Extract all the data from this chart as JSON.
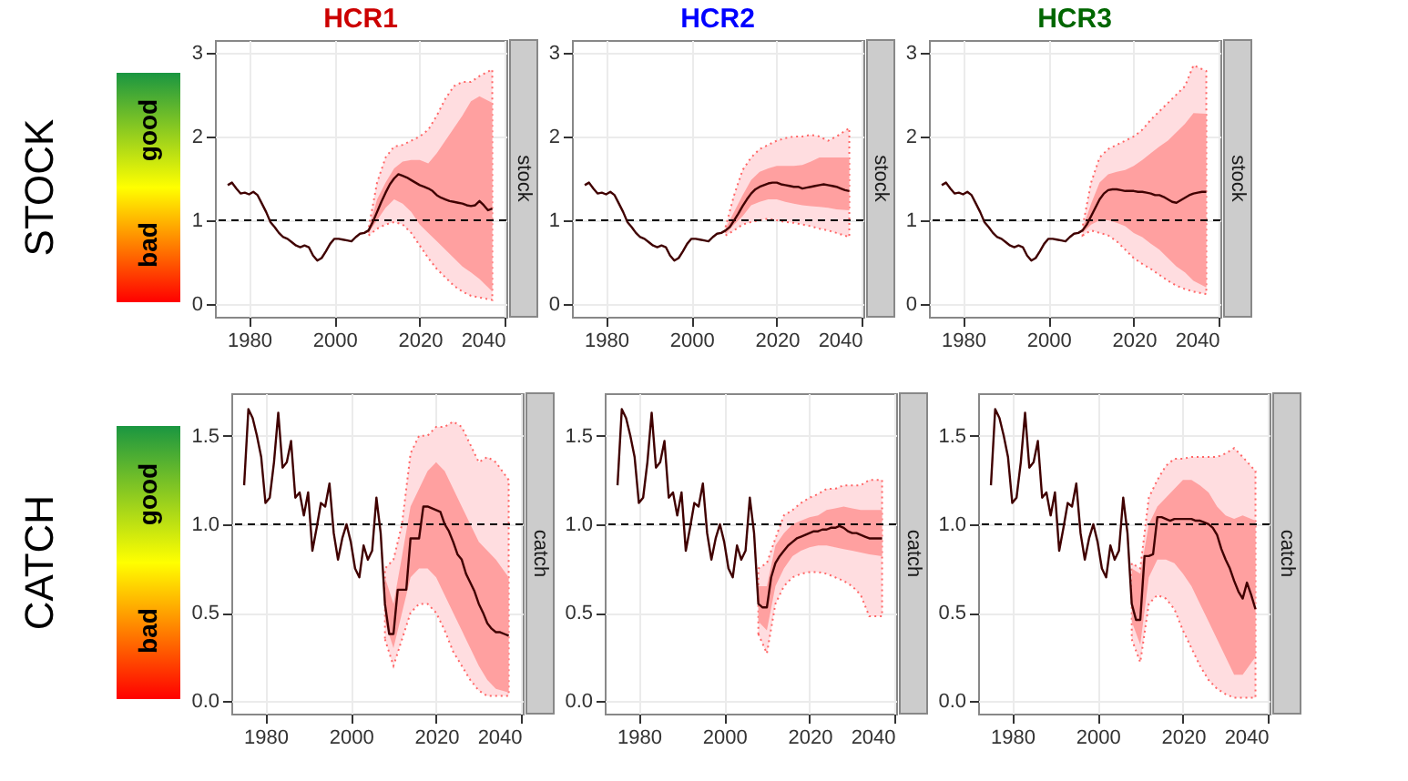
{
  "chart_data": [
    {
      "type": "other",
      "title": "STOCK",
      "annotations": [
        "good",
        "bad"
      ]
    },
    {
      "type": "line",
      "title": "HCR1",
      "y2label": "stock",
      "xlim": [
        1972,
        2040.3
      ],
      "xticks": [
        1980,
        2000,
        2020,
        2040
      ],
      "ylim": [
        -0.15,
        3.15
      ],
      "yticks": [
        0,
        1,
        2,
        3
      ],
      "grid": true,
      "ref_lines": [
        {
          "axis": "y",
          "value": 1,
          "color": "#000000",
          "line_style": "dashed"
        }
      ],
      "series": [
        {
          "color": "#ffdde0",
          "line_style": "dotted",
          "x": [
            2008,
            2010,
            2012,
            2014,
            2016,
            2018,
            2020,
            2022,
            2024,
            2026,
            2028,
            2030,
            2032,
            2034,
            2037
          ],
          "values": [
            null,
            null,
            null,
            null,
            null,
            null,
            null,
            null,
            null,
            null,
            null,
            null,
            null,
            null,
            null
          ],
          "lower": [
            0.82,
            0.9,
            0.95,
            0.98,
            0.95,
            0.85,
            0.7,
            0.55,
            0.42,
            0.32,
            0.22,
            0.15,
            0.1,
            0.08,
            0.05
          ],
          "upper": [
            0.9,
            1.45,
            1.75,
            1.88,
            1.9,
            1.95,
            2.0,
            2.08,
            2.25,
            2.45,
            2.6,
            2.65,
            2.65,
            2.72,
            2.8
          ]
        },
        {
          "color": "#ffa0a0",
          "x": [
            2008,
            2010,
            2012,
            2014,
            2016,
            2018,
            2020,
            2022,
            2024,
            2026,
            2028,
            2030,
            2032,
            2034,
            2037
          ],
          "values": [
            null,
            null,
            null,
            null,
            null,
            null,
            null,
            null,
            null,
            null,
            null,
            null,
            null,
            null,
            null
          ],
          "lower": [
            0.85,
            1.0,
            1.15,
            1.25,
            1.2,
            1.1,
            0.95,
            0.85,
            0.75,
            0.65,
            0.55,
            0.45,
            0.38,
            0.3,
            0.15
          ],
          "upper": [
            0.88,
            1.25,
            1.45,
            1.62,
            1.7,
            1.72,
            1.72,
            1.68,
            1.8,
            1.95,
            2.1,
            2.25,
            2.42,
            2.48,
            2.4
          ]
        },
        {
          "color": "#400000",
          "x": [
            1975,
            1976,
            1977,
            1978,
            1979,
            1980,
            1981,
            1982,
            1983,
            1984,
            1985,
            1986,
            1987,
            1988,
            1989,
            1990,
            1991,
            1992,
            1993,
            1994,
            1995,
            1996,
            1997,
            1998,
            1999,
            2000,
            2001,
            2002,
            2003,
            2004,
            2005,
            2006,
            2007,
            2008,
            2009,
            2010,
            2011,
            2012,
            2013,
            2014,
            2015,
            2016,
            2017,
            2018,
            2019,
            2020,
            2021,
            2022,
            2023,
            2024,
            2025,
            2026,
            2027,
            2028,
            2029,
            2030,
            2031,
            2032,
            2033,
            2034,
            2035,
            2036,
            2037
          ],
          "values": [
            1.42,
            1.45,
            1.38,
            1.32,
            1.33,
            1.31,
            1.34,
            1.3,
            1.2,
            1.1,
            0.98,
            0.92,
            0.85,
            0.8,
            0.78,
            0.74,
            0.7,
            0.68,
            0.7,
            0.68,
            0.58,
            0.52,
            0.55,
            0.63,
            0.72,
            0.78,
            0.78,
            0.77,
            0.76,
            0.75,
            0.8,
            0.84,
            0.85,
            0.88,
            0.98,
            1.1,
            1.22,
            1.33,
            1.43,
            1.5,
            1.55,
            1.53,
            1.51,
            1.48,
            1.45,
            1.42,
            1.4,
            1.38,
            1.35,
            1.3,
            1.27,
            1.25,
            1.23,
            1.22,
            1.21,
            1.2,
            1.18,
            1.17,
            1.18,
            1.23,
            1.18,
            1.12,
            1.14
          ]
        }
      ]
    },
    {
      "type": "line",
      "title": "HCR2",
      "y2label": "stock",
      "xlim": [
        1972,
        2040.3
      ],
      "xticks": [
        1980,
        2000,
        2020,
        2040
      ],
      "ylim": [
        -0.15,
        3.15
      ],
      "yticks": [
        0,
        1,
        2,
        3
      ],
      "grid": true,
      "ref_lines": [
        {
          "axis": "y",
          "value": 1,
          "color": "#000000",
          "line_style": "dashed"
        }
      ],
      "series": [
        {
          "color": "#ffdde0",
          "line_style": "dotted",
          "x": [
            2008,
            2010,
            2012,
            2014,
            2016,
            2018,
            2020,
            2022,
            2024,
            2026,
            2028,
            2030,
            2032,
            2034,
            2037
          ],
          "values": [
            null,
            null,
            null,
            null,
            null,
            null,
            null,
            null,
            null,
            null,
            null,
            null,
            null,
            null,
            null
          ],
          "lower": [
            0.82,
            0.88,
            0.95,
            0.98,
            1.0,
            1.02,
            1.0,
            0.98,
            0.97,
            0.95,
            0.93,
            0.9,
            0.88,
            0.85,
            0.8
          ],
          "upper": [
            0.92,
            1.3,
            1.6,
            1.75,
            1.85,
            1.9,
            1.95,
            1.98,
            2.0,
            2.0,
            2.02,
            2.0,
            1.95,
            2.0,
            2.1
          ]
        },
        {
          "color": "#ffa0a0",
          "x": [
            2008,
            2010,
            2012,
            2014,
            2016,
            2018,
            2020,
            2022,
            2024,
            2026,
            2028,
            2030,
            2032,
            2034,
            2037
          ],
          "values": [
            null,
            null,
            null,
            null,
            null,
            null,
            null,
            null,
            null,
            null,
            null,
            null,
            null,
            null,
            null
          ],
          "lower": [
            0.84,
            0.95,
            1.05,
            1.18,
            1.22,
            1.25,
            1.25,
            1.22,
            1.2,
            1.18,
            1.17,
            1.16,
            1.15,
            1.13,
            1.12
          ],
          "upper": [
            0.9,
            1.1,
            1.3,
            1.48,
            1.58,
            1.62,
            1.65,
            1.65,
            1.65,
            1.66,
            1.7,
            1.75,
            1.75,
            1.75,
            1.75
          ]
        },
        {
          "color": "#400000",
          "x": [
            1975,
            1976,
            1977,
            1978,
            1979,
            1980,
            1981,
            1982,
            1983,
            1984,
            1985,
            1986,
            1987,
            1988,
            1989,
            1990,
            1991,
            1992,
            1993,
            1994,
            1995,
            1996,
            1997,
            1998,
            1999,
            2000,
            2001,
            2002,
            2003,
            2004,
            2005,
            2006,
            2007,
            2008,
            2009,
            2010,
            2011,
            2012,
            2013,
            2014,
            2015,
            2016,
            2017,
            2018,
            2019,
            2020,
            2021,
            2022,
            2023,
            2024,
            2025,
            2026,
            2027,
            2028,
            2029,
            2030,
            2031,
            2032,
            2033,
            2034,
            2035,
            2036,
            2037
          ],
          "values": [
            1.42,
            1.45,
            1.38,
            1.32,
            1.33,
            1.31,
            1.34,
            1.3,
            1.2,
            1.1,
            0.98,
            0.92,
            0.85,
            0.8,
            0.78,
            0.74,
            0.7,
            0.68,
            0.7,
            0.68,
            0.58,
            0.52,
            0.55,
            0.63,
            0.72,
            0.78,
            0.78,
            0.77,
            0.76,
            0.75,
            0.8,
            0.84,
            0.85,
            0.88,
            0.92,
            1.0,
            1.08,
            1.17,
            1.25,
            1.32,
            1.37,
            1.4,
            1.42,
            1.44,
            1.45,
            1.45,
            1.43,
            1.42,
            1.41,
            1.4,
            1.4,
            1.38,
            1.39,
            1.4,
            1.41,
            1.42,
            1.43,
            1.42,
            1.41,
            1.4,
            1.38,
            1.36,
            1.35
          ]
        }
      ]
    },
    {
      "type": "line",
      "title": "HCR3",
      "y2label": "stock",
      "xlim": [
        1972,
        2040.3
      ],
      "xticks": [
        1980,
        2000,
        2020,
        2040
      ],
      "ylim": [
        -0.15,
        3.15
      ],
      "yticks": [
        0,
        1,
        2,
        3
      ],
      "grid": true,
      "ref_lines": [
        {
          "axis": "y",
          "value": 1,
          "color": "#000000",
          "line_style": "dashed"
        }
      ],
      "series": [
        {
          "color": "#ffdde0",
          "line_style": "dotted",
          "x": [
            2008,
            2010,
            2012,
            2014,
            2016,
            2018,
            2020,
            2022,
            2024,
            2026,
            2028,
            2030,
            2032,
            2034,
            2037
          ],
          "values": [
            null,
            null,
            null,
            null,
            null,
            null,
            null,
            null,
            null,
            null,
            null,
            null,
            null,
            null,
            null
          ],
          "lower": [
            0.82,
            0.88,
            0.85,
            0.82,
            0.75,
            0.65,
            0.55,
            0.48,
            0.42,
            0.35,
            0.28,
            0.22,
            0.18,
            0.15,
            0.12
          ],
          "upper": [
            0.92,
            1.45,
            1.75,
            1.85,
            1.9,
            1.95,
            2.0,
            2.08,
            2.2,
            2.3,
            2.4,
            2.5,
            2.6,
            2.85,
            2.78
          ]
        },
        {
          "color": "#ffa0a0",
          "x": [
            2008,
            2010,
            2012,
            2014,
            2016,
            2018,
            2020,
            2022,
            2024,
            2026,
            2028,
            2030,
            2032,
            2034,
            2037
          ],
          "values": [
            null,
            null,
            null,
            null,
            null,
            null,
            null,
            null,
            null,
            null,
            null,
            null,
            null,
            null,
            null
          ],
          "lower": [
            0.85,
            0.95,
            1.0,
            1.0,
            0.97,
            0.93,
            0.85,
            0.8,
            0.72,
            0.65,
            0.55,
            0.45,
            0.38,
            0.28,
            0.2
          ],
          "upper": [
            0.9,
            1.2,
            1.45,
            1.55,
            1.58,
            1.6,
            1.65,
            1.72,
            1.8,
            1.88,
            1.95,
            2.05,
            2.15,
            2.28,
            2.27
          ]
        },
        {
          "color": "#400000",
          "x": [
            1975,
            1976,
            1977,
            1978,
            1979,
            1980,
            1981,
            1982,
            1983,
            1984,
            1985,
            1986,
            1987,
            1988,
            1989,
            1990,
            1991,
            1992,
            1993,
            1994,
            1995,
            1996,
            1997,
            1998,
            1999,
            2000,
            2001,
            2002,
            2003,
            2004,
            2005,
            2006,
            2007,
            2008,
            2009,
            2010,
            2011,
            2012,
            2013,
            2014,
            2015,
            2016,
            2017,
            2018,
            2019,
            2020,
            2021,
            2022,
            2023,
            2024,
            2025,
            2026,
            2027,
            2028,
            2029,
            2030,
            2031,
            2032,
            2033,
            2034,
            2035,
            2036,
            2037
          ],
          "values": [
            1.42,
            1.45,
            1.38,
            1.32,
            1.33,
            1.31,
            1.34,
            1.3,
            1.2,
            1.1,
            0.98,
            0.92,
            0.85,
            0.8,
            0.78,
            0.74,
            0.7,
            0.68,
            0.7,
            0.68,
            0.58,
            0.52,
            0.55,
            0.63,
            0.72,
            0.78,
            0.78,
            0.77,
            0.76,
            0.75,
            0.8,
            0.84,
            0.85,
            0.88,
            0.95,
            1.05,
            1.15,
            1.25,
            1.32,
            1.36,
            1.37,
            1.37,
            1.36,
            1.35,
            1.35,
            1.35,
            1.34,
            1.34,
            1.33,
            1.32,
            1.3,
            1.3,
            1.28,
            1.25,
            1.22,
            1.21,
            1.24,
            1.27,
            1.3,
            1.32,
            1.33,
            1.34,
            1.34
          ]
        }
      ]
    },
    {
      "type": "other",
      "title": "CATCH",
      "annotations": [
        "good",
        "bad"
      ]
    },
    {
      "type": "line",
      "y2label": "catch",
      "xlim": [
        1972,
        2040.3
      ],
      "xticks": [
        1980,
        2000,
        2020,
        2040
      ],
      "ylim": [
        -0.07,
        1.74
      ],
      "yticks": [
        {
          "value": 0,
          "label": "0.0"
        },
        {
          "value": 0.5,
          "label": "0.5"
        },
        {
          "value": 1,
          "label": "1.0"
        },
        {
          "value": 1.5,
          "label": "1.5"
        }
      ],
      "grid": true,
      "ref_lines": [
        {
          "axis": "y",
          "value": 1,
          "color": "#000000",
          "line_style": "dashed"
        }
      ],
      "series": [
        {
          "color": "#ffdde0",
          "line_style": "dotted",
          "x": [
            2008,
            2010,
            2012,
            2014,
            2016,
            2018,
            2020,
            2022,
            2024,
            2026,
            2028,
            2030,
            2032,
            2034,
            2037
          ],
          "values": [
            null,
            null,
            null,
            null,
            null,
            null,
            null,
            null,
            null,
            null,
            null,
            null,
            null,
            null,
            null
          ],
          "lower": [
            0.35,
            0.2,
            0.35,
            0.5,
            0.55,
            0.55,
            0.5,
            0.4,
            0.28,
            0.2,
            0.12,
            0.06,
            0.03,
            0.03,
            0.03
          ],
          "upper": [
            0.75,
            0.8,
            1.0,
            1.4,
            1.5,
            1.5,
            1.55,
            1.55,
            1.58,
            1.55,
            1.45,
            1.35,
            1.38,
            1.35,
            1.25
          ]
        },
        {
          "color": "#ffa0a0",
          "x": [
            2008,
            2010,
            2012,
            2014,
            2016,
            2018,
            2020,
            2022,
            2024,
            2026,
            2028,
            2030,
            2032,
            2034,
            2037
          ],
          "values": [
            null,
            null,
            null,
            null,
            null,
            null,
            null,
            null,
            null,
            null,
            null,
            null,
            null,
            null,
            null
          ],
          "lower": [
            0.45,
            0.3,
            0.5,
            0.7,
            0.75,
            0.75,
            0.7,
            0.6,
            0.5,
            0.4,
            0.3,
            0.2,
            0.12,
            0.07,
            0.05
          ],
          "upper": [
            0.7,
            0.55,
            0.82,
            1.1,
            1.2,
            1.3,
            1.35,
            1.3,
            1.2,
            1.1,
            1.0,
            0.9,
            0.85,
            0.8,
            0.7
          ]
        },
        {
          "color": "#400000",
          "x": [
            1975,
            1976,
            1977,
            1978,
            1979,
            1980,
            1981,
            1982,
            1983,
            1984,
            1985,
            1986,
            1987,
            1988,
            1989,
            1990,
            1991,
            1992,
            1993,
            1994,
            1995,
            1996,
            1997,
            1998,
            1999,
            2000,
            2001,
            2002,
            2003,
            2004,
            2005,
            2006,
            2007,
            2008,
            2009,
            2010,
            2011,
            2012,
            2013,
            2014,
            2015,
            2016,
            2017,
            2018,
            2019,
            2020,
            2021,
            2022,
            2023,
            2024,
            2025,
            2026,
            2027,
            2028,
            2029,
            2030,
            2031,
            2032,
            2033,
            2034,
            2035,
            2036,
            2037
          ],
          "values": [
            1.22,
            1.65,
            1.6,
            1.5,
            1.38,
            1.12,
            1.15,
            1.35,
            1.63,
            1.32,
            1.35,
            1.47,
            1.15,
            1.18,
            1.05,
            1.18,
            0.85,
            0.98,
            1.12,
            1.1,
            1.23,
            0.95,
            0.8,
            0.92,
            1.0,
            0.9,
            0.75,
            0.7,
            0.88,
            0.8,
            0.85,
            1.15,
            0.95,
            0.55,
            0.38,
            0.38,
            0.63,
            0.63,
            0.63,
            0.92,
            0.92,
            0.92,
            1.1,
            1.1,
            1.09,
            1.08,
            1.07,
            1.0,
            0.96,
            0.9,
            0.83,
            0.8,
            0.72,
            0.67,
            0.62,
            0.55,
            0.5,
            0.44,
            0.41,
            0.39,
            0.39,
            0.38,
            0.37
          ]
        }
      ]
    },
    {
      "type": "line",
      "y2label": "catch",
      "xlim": [
        1972,
        2040.3
      ],
      "xticks": [
        1980,
        2000,
        2020,
        2040
      ],
      "ylim": [
        -0.07,
        1.74
      ],
      "yticks": [
        {
          "value": 0,
          "label": "0.0"
        },
        {
          "value": 0.5,
          "label": "0.5"
        },
        {
          "value": 1,
          "label": "1.0"
        },
        {
          "value": 1.5,
          "label": "1.5"
        }
      ],
      "grid": true,
      "ref_lines": [
        {
          "axis": "y",
          "value": 1,
          "color": "#000000",
          "line_style": "dashed"
        }
      ],
      "series": [
        {
          "color": "#ffdde0",
          "line_style": "dotted",
          "x": [
            2008,
            2010,
            2012,
            2014,
            2016,
            2018,
            2020,
            2022,
            2024,
            2026,
            2028,
            2030,
            2032,
            2034,
            2037
          ],
          "values": [
            null,
            null,
            null,
            null,
            null,
            null,
            null,
            null,
            null,
            null,
            null,
            null,
            null,
            null,
            null
          ],
          "lower": [
            0.38,
            0.27,
            0.55,
            0.65,
            0.7,
            0.72,
            0.73,
            0.73,
            0.72,
            0.7,
            0.68,
            0.65,
            0.6,
            0.48,
            0.48
          ],
          "upper": [
            0.75,
            0.78,
            0.92,
            1.05,
            1.08,
            1.12,
            1.15,
            1.17,
            1.2,
            1.2,
            1.22,
            1.22,
            1.22,
            1.25,
            1.25
          ]
        },
        {
          "color": "#ffa0a0",
          "x": [
            2008,
            2010,
            2012,
            2014,
            2016,
            2018,
            2020,
            2022,
            2024,
            2026,
            2028,
            2030,
            2032,
            2034,
            2037
          ],
          "values": [
            null,
            null,
            null,
            null,
            null,
            null,
            null,
            null,
            null,
            null,
            null,
            null,
            null,
            null,
            null
          ],
          "lower": [
            0.45,
            0.4,
            0.65,
            0.75,
            0.82,
            0.85,
            0.87,
            0.88,
            0.88,
            0.87,
            0.86,
            0.85,
            0.84,
            0.83,
            0.82
          ],
          "upper": [
            0.65,
            0.65,
            0.88,
            0.95,
            1.0,
            1.02,
            1.04,
            1.05,
            1.08,
            1.09,
            1.1,
            1.09,
            1.08,
            1.08,
            1.08
          ]
        },
        {
          "color": "#400000",
          "x": [
            1975,
            1976,
            1977,
            1978,
            1979,
            1980,
            1981,
            1982,
            1983,
            1984,
            1985,
            1986,
            1987,
            1988,
            1989,
            1990,
            1991,
            1992,
            1993,
            1994,
            1995,
            1996,
            1997,
            1998,
            1999,
            2000,
            2001,
            2002,
            2003,
            2004,
            2005,
            2006,
            2007,
            2008,
            2009,
            2010,
            2011,
            2012,
            2013,
            2014,
            2015,
            2016,
            2017,
            2018,
            2019,
            2020,
            2021,
            2022,
            2023,
            2024,
            2025,
            2026,
            2027,
            2028,
            2029,
            2030,
            2031,
            2032,
            2033,
            2034,
            2035,
            2036,
            2037
          ],
          "values": [
            1.22,
            1.65,
            1.6,
            1.5,
            1.38,
            1.12,
            1.15,
            1.35,
            1.63,
            1.32,
            1.35,
            1.47,
            1.15,
            1.18,
            1.05,
            1.18,
            0.85,
            0.98,
            1.12,
            1.1,
            1.23,
            0.95,
            0.8,
            0.92,
            1.0,
            0.9,
            0.75,
            0.7,
            0.88,
            0.8,
            0.85,
            1.15,
            0.95,
            0.55,
            0.53,
            0.53,
            0.7,
            0.78,
            0.82,
            0.85,
            0.88,
            0.9,
            0.92,
            0.93,
            0.94,
            0.95,
            0.96,
            0.96,
            0.97,
            0.97,
            0.98,
            0.98,
            0.99,
            0.98,
            0.96,
            0.95,
            0.95,
            0.94,
            0.93,
            0.92,
            0.92,
            0.92,
            0.92
          ]
        }
      ]
    },
    {
      "type": "line",
      "y2label": "catch",
      "xlim": [
        1972,
        2040.3
      ],
      "xticks": [
        1980,
        2000,
        2020,
        2040
      ],
      "ylim": [
        -0.07,
        1.74
      ],
      "yticks": [
        {
          "value": 0,
          "label": "0.0"
        },
        {
          "value": 0.5,
          "label": "0.5"
        },
        {
          "value": 1,
          "label": "1.0"
        },
        {
          "value": 1.5,
          "label": "1.5"
        }
      ],
      "grid": true,
      "ref_lines": [
        {
          "axis": "y",
          "value": 1,
          "color": "#000000",
          "line_style": "dashed"
        }
      ],
      "series": [
        {
          "color": "#ffdde0",
          "line_style": "dotted",
          "x": [
            2008,
            2010,
            2012,
            2014,
            2016,
            2018,
            2020,
            2022,
            2024,
            2026,
            2028,
            2030,
            2032,
            2034,
            2037
          ],
          "values": [
            null,
            null,
            null,
            null,
            null,
            null,
            null,
            null,
            null,
            null,
            null,
            null,
            null,
            null,
            null
          ],
          "lower": [
            0.35,
            0.22,
            0.55,
            0.6,
            0.58,
            0.52,
            0.4,
            0.3,
            0.2,
            0.12,
            0.07,
            0.04,
            0.02,
            0.02,
            0.02
          ],
          "upper": [
            0.78,
            0.75,
            1.15,
            1.25,
            1.33,
            1.37,
            1.37,
            1.38,
            1.38,
            1.38,
            1.38,
            1.4,
            1.43,
            1.38,
            1.3
          ]
        },
        {
          "color": "#ffa0a0",
          "x": [
            2008,
            2010,
            2012,
            2014,
            2016,
            2018,
            2020,
            2022,
            2024,
            2026,
            2028,
            2030,
            2032,
            2034,
            2037
          ],
          "values": [
            null,
            null,
            null,
            null,
            null,
            null,
            null,
            null,
            null,
            null,
            null,
            null,
            null,
            null,
            null
          ],
          "lower": [
            0.45,
            0.32,
            0.7,
            0.8,
            0.8,
            0.78,
            0.72,
            0.65,
            0.55,
            0.45,
            0.35,
            0.25,
            0.15,
            0.15,
            0.25
          ],
          "upper": [
            0.75,
            0.72,
            1.0,
            1.1,
            1.15,
            1.2,
            1.25,
            1.25,
            1.22,
            1.18,
            1.1,
            1.05,
            1.03,
            1.05,
            1.02
          ]
        },
        {
          "color": "#400000",
          "x": [
            1975,
            1976,
            1977,
            1978,
            1979,
            1980,
            1981,
            1982,
            1983,
            1984,
            1985,
            1986,
            1987,
            1988,
            1989,
            1990,
            1991,
            1992,
            1993,
            1994,
            1995,
            1996,
            1997,
            1998,
            1999,
            2000,
            2001,
            2002,
            2003,
            2004,
            2005,
            2006,
            2007,
            2008,
            2009,
            2010,
            2011,
            2012,
            2013,
            2014,
            2015,
            2016,
            2017,
            2018,
            2019,
            2020,
            2021,
            2022,
            2023,
            2024,
            2025,
            2026,
            2027,
            2028,
            2029,
            2030,
            2031,
            2032,
            2033,
            2034,
            2035,
            2036,
            2037
          ],
          "values": [
            1.22,
            1.65,
            1.6,
            1.5,
            1.38,
            1.12,
            1.15,
            1.35,
            1.63,
            1.32,
            1.35,
            1.47,
            1.15,
            1.18,
            1.05,
            1.18,
            0.85,
            0.98,
            1.12,
            1.1,
            1.23,
            0.95,
            0.8,
            0.92,
            1.0,
            0.9,
            0.75,
            0.7,
            0.88,
            0.8,
            0.85,
            1.15,
            0.95,
            0.55,
            0.46,
            0.46,
            0.82,
            0.82,
            0.83,
            1.04,
            1.04,
            1.03,
            1.02,
            1.03,
            1.03,
            1.03,
            1.03,
            1.03,
            1.02,
            1.02,
            1.01,
            1.0,
            0.98,
            0.94,
            0.86,
            0.8,
            0.75,
            0.68,
            0.62,
            0.58,
            0.67,
            0.6,
            0.52
          ]
        }
      ]
    }
  ]
}
